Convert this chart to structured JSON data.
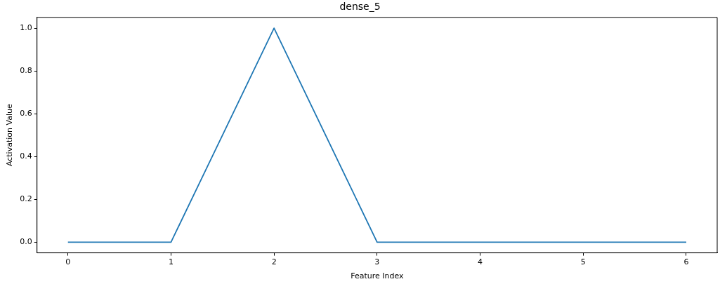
{
  "chart_data": {
    "type": "line",
    "title": "dense_5",
    "xlabel": "Feature Index",
    "ylabel": "Activation Value",
    "x": [
      0,
      1,
      2,
      3,
      4,
      5,
      6
    ],
    "series": [
      {
        "color": "#1f77b4",
        "values": [
          0,
          0,
          1,
          0,
          0,
          0,
          0
        ]
      }
    ],
    "xlim": [
      -0.3,
      6.3
    ],
    "xticks": [
      0,
      1,
      2,
      3,
      4,
      5,
      6
    ],
    "ylim": [
      -0.05,
      1.05
    ],
    "yticks": [
      {
        "value": 0,
        "label": "0.0"
      },
      {
        "value": 0.2,
        "label": "0.2"
      },
      {
        "value": 0.4,
        "label": "0.4"
      },
      {
        "value": 0.6,
        "label": "0.6"
      },
      {
        "value": 0.8,
        "label": "0.8"
      },
      {
        "value": 1,
        "label": "1.0"
      }
    ],
    "grid": false,
    "legend": false,
    "marker": "none",
    "line_style": "solid"
  }
}
